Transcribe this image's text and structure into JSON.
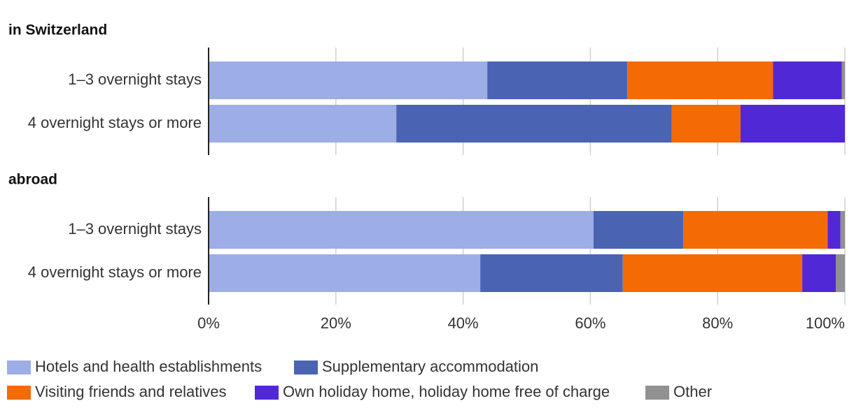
{
  "chart_data": {
    "type": "bar",
    "orientation": "horizontal",
    "stacked": true,
    "grid": true,
    "xlim": [
      0,
      100
    ],
    "xticks": [
      {
        "value": 0,
        "label": "0%"
      },
      {
        "value": 20,
        "label": "20%"
      },
      {
        "value": 40,
        "label": "40%"
      },
      {
        "value": 60,
        "label": "60%"
      },
      {
        "value": 80,
        "label": "80%"
      },
      {
        "value": 100,
        "label": "100%"
      }
    ],
    "series": [
      {
        "name": "Hotels and health establishments",
        "color": "#9dade6"
      },
      {
        "name": "Supplementary accommodation",
        "color": "#4a63b3"
      },
      {
        "name": "Visiting friends and relatives",
        "color": "#f46a04"
      },
      {
        "name": "Own holiday home, holiday home free of charge",
        "color": "#5128d6"
      },
      {
        "name": "Other",
        "color": "#919191"
      }
    ],
    "panels": [
      {
        "title": "in Switzerland",
        "categories": [
          "1–3 overnight stays",
          "4 overnight stays or more"
        ],
        "values": [
          [
            43.8,
            22.0,
            22.9,
            10.8,
            0.5
          ],
          [
            29.5,
            43.3,
            10.8,
            16.4,
            0
          ]
        ]
      },
      {
        "title": "abroad",
        "categories": [
          "1–3 overnight stays",
          "4 overnight stays or more"
        ],
        "values": [
          [
            60.5,
            14.1,
            22.7,
            2.0,
            0.7
          ],
          [
            42.7,
            22.4,
            28.2,
            5.3,
            1.4
          ]
        ]
      }
    ]
  }
}
